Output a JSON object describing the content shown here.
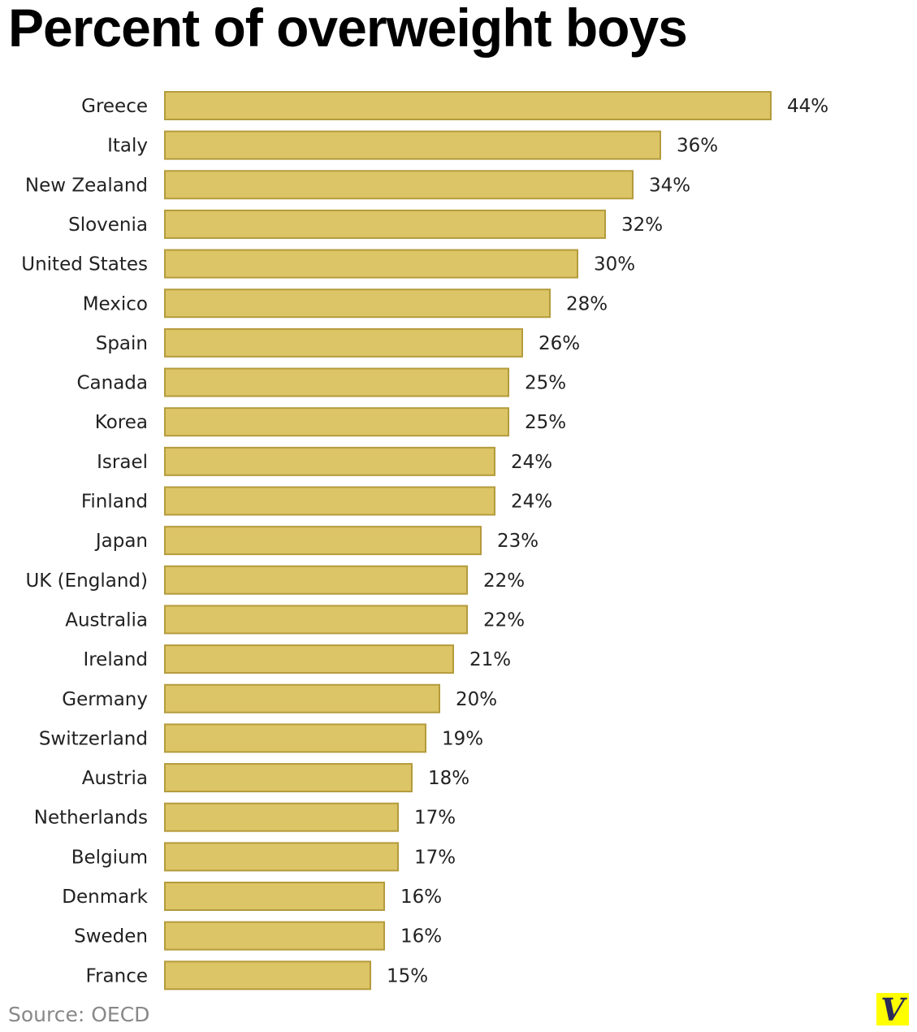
{
  "chart_data": {
    "type": "bar",
    "orientation": "horizontal",
    "title": "Percent of overweight boys",
    "categories": [
      "Greece",
      "Italy",
      "New Zealand",
      "Slovenia",
      "United States",
      "Mexico",
      "Spain",
      "Canada",
      "Korea",
      "Israel",
      "Finland",
      "Japan",
      "UK (England)",
      "Australia",
      "Ireland",
      "Germany",
      "Switzerland",
      "Austria",
      "Netherlands",
      "Belgium",
      "Denmark",
      "Sweden",
      "France"
    ],
    "values": [
      44,
      36,
      34,
      32,
      30,
      28,
      26,
      25,
      25,
      24,
      24,
      23,
      22,
      22,
      21,
      20,
      19,
      18,
      17,
      17,
      16,
      16,
      15
    ],
    "value_suffix": "%",
    "xlim": [
      0,
      44
    ],
    "grid": false,
    "colors": {
      "bar": "#dcc566",
      "bar_border": "#b49b3c",
      "label": "#222222"
    }
  },
  "source": "Source: OECD",
  "logo": "V"
}
